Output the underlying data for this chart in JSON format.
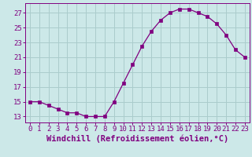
{
  "hours": [
    0,
    1,
    2,
    3,
    4,
    5,
    6,
    7,
    8,
    9,
    10,
    11,
    12,
    13,
    14,
    15,
    16,
    17,
    18,
    19,
    20,
    21,
    22,
    23
  ],
  "values": [
    15,
    15,
    14.5,
    14,
    13.5,
    13.5,
    13,
    13,
    13,
    15,
    17.5,
    20,
    22.5,
    24.5,
    26,
    27,
    27.5,
    27.5,
    27,
    26.5,
    25.5,
    24,
    22,
    21
  ],
  "line_color": "#800080",
  "marker": "s",
  "marker_size": 2.5,
  "bg_color": "#cce8e8",
  "grid_color": "#aacccc",
  "axis_color": "#800080",
  "xlabel": "Windchill (Refroidissement éolien,°C)",
  "xlabel_fontsize": 7.5,
  "ylabel_ticks": [
    13,
    15,
    17,
    19,
    21,
    23,
    25,
    27
  ],
  "ylim": [
    12.2,
    28.3
  ],
  "xlim": [
    -0.5,
    23.5
  ],
  "tick_fontsize": 6.5,
  "tick_color": "#800080",
  "font_family": "monospace"
}
